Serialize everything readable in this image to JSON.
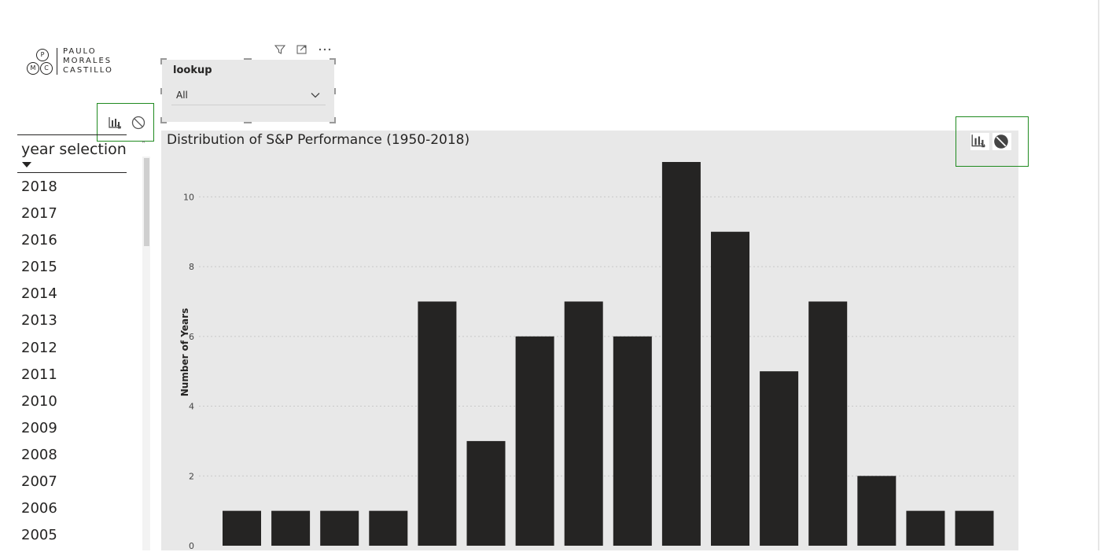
{
  "logo": {
    "letters": [
      "P",
      "M",
      "C"
    ],
    "lines": [
      "PAULO",
      "MORALES",
      "CASTILLO"
    ]
  },
  "visual_header_icons": [
    "filter-icon",
    "focus-mode-icon",
    "more-options-icon"
  ],
  "lookup": {
    "title": "lookup",
    "selected": "All"
  },
  "slicer": {
    "header": "year selection",
    "years": [
      "2018",
      "2017",
      "2016",
      "2015",
      "2014",
      "2013",
      "2012",
      "2011",
      "2010",
      "2009",
      "2008",
      "2007",
      "2006",
      "2005"
    ]
  },
  "action_icons": [
    "chart-insights-icon",
    "block-icon"
  ],
  "colors": {
    "bar": "#252423",
    "panel": "#e8e8e8",
    "highlight_border": "#1f8a1f"
  },
  "chart_data": {
    "type": "bar",
    "title": "Distribution of S&P Performance (1950-2018)",
    "ylabel": "Number of Years",
    "xlabel": "",
    "ylim": [
      0,
      11
    ],
    "yticks": [
      "0",
      "2",
      "4",
      "6",
      "8",
      "10"
    ],
    "values": [
      1,
      1,
      1,
      1,
      7,
      3,
      6,
      7,
      6,
      11,
      9,
      5,
      7,
      2,
      1,
      1
    ],
    "grid": true
  }
}
